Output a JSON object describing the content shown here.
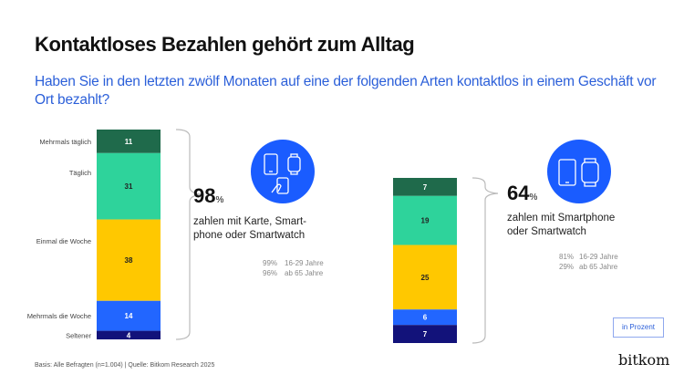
{
  "title": "Kontaktloses Bezahlen gehört zum Alltag",
  "subtitle": "Haben Sie in den letzten zwölf Monaten auf eine der folgenden Arten kontaktlos in einem Geschäft vor Ort bezahlt?",
  "footer": {
    "source": "Basis: Alle Befragten (n=1.004) | Quelle: Bitkom Research 2025",
    "unit": "in Prozent",
    "logo": "bitkom"
  },
  "chart_data": [
    {
      "type": "bar",
      "stacked": true,
      "categories": [
        "Mehrmals täglich",
        "Täglich",
        "Einmal die Woche",
        "Mehrmals die Woche",
        "Seltener"
      ],
      "values": [
        11,
        31,
        38,
        14,
        4
      ],
      "colors": [
        "#1f6a4b",
        "#2ed39b",
        "#ffc800",
        "#2266ff",
        "#12127a"
      ],
      "total": {
        "value": "98",
        "suffix": "%",
        "label": "zahlen mit Karte, Smart-phone oder Smartwatch",
        "label_lines": [
          "zahlen mit Karte, Smart-",
          "phone oder Smartwatch"
        ]
      },
      "breakdown": [
        {
          "value": "99%",
          "group": "16-29 Jahre"
        },
        {
          "value": "96%",
          "group": "ab 65 Jahre"
        }
      ],
      "icon": "card-phone-watch-icon"
    },
    {
      "type": "bar",
      "stacked": true,
      "categories": [
        "Mehrmals täglich",
        "Täglich",
        "Einmal die Woche",
        "Mehrmals die Woche",
        "Seltener"
      ],
      "values": [
        7,
        19,
        25,
        6,
        7
      ],
      "colors": [
        "#1f6a4b",
        "#2ed39b",
        "#ffc800",
        "#2266ff",
        "#12127a"
      ],
      "total": {
        "value": "64",
        "suffix": "%",
        "label": "zahlen mit Smartphone oder Smartwatch",
        "label_lines": [
          "zahlen mit Smartphone",
          "oder Smartwatch"
        ]
      },
      "breakdown": [
        {
          "value": "81%",
          "group": "16-29 Jahre"
        },
        {
          "value": "29%",
          "group": "ab 65 Jahre"
        }
      ],
      "icon": "phone-watch-icon"
    }
  ]
}
